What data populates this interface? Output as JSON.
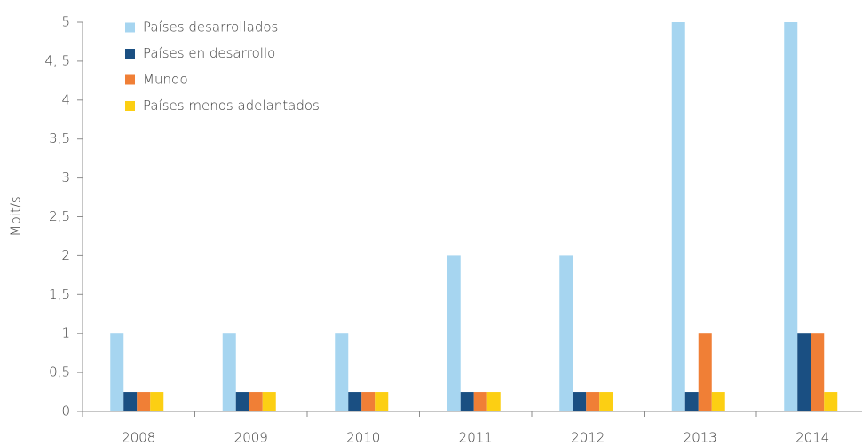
{
  "chart_data": {
    "type": "bar",
    "y_label": "Mbit/s",
    "categories": [
      "2008",
      "2009",
      "2010",
      "2011",
      "2012",
      "2013",
      "2014"
    ],
    "series": [
      {
        "name": "Países desarrollados",
        "color": "#a6d5f0",
        "values": [
          1,
          1,
          1,
          2,
          2,
          5,
          5
        ]
      },
      {
        "name": "Países en desarrollo",
        "color": "#1a4f82",
        "values": [
          0.25,
          0.25,
          0.25,
          0.25,
          0.25,
          0.25,
          1
        ]
      },
      {
        "name": "Mundo",
        "color": "#f07f36",
        "values": [
          0.25,
          0.25,
          0.25,
          0.25,
          0.25,
          1,
          1
        ]
      },
      {
        "name": "Países menos adelantados",
        "color": "#fccf13",
        "values": [
          0.25,
          0.25,
          0.25,
          0.25,
          0.25,
          0.25,
          0.25
        ]
      }
    ],
    "ylim": [
      0,
      5
    ],
    "yticks": [
      0,
      {
        "value": 0.5,
        "label": "0,5"
      },
      1,
      {
        "value": 1.5,
        "label": "1,5"
      },
      2,
      {
        "value": 2.5,
        "label": "2,5"
      },
      3,
      {
        "value": 3.5,
        "label": "3,5"
      },
      4,
      {
        "value": 4.5,
        "label": "4, 5"
      },
      5
    ],
    "legend": "upper left",
    "grid": false
  }
}
